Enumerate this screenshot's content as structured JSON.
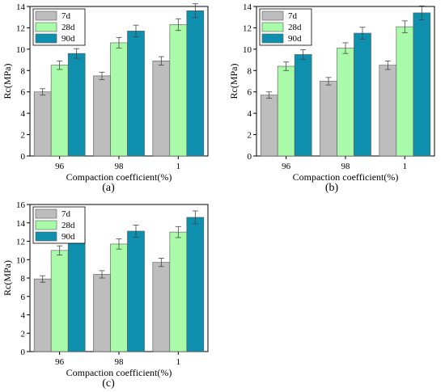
{
  "colors": {
    "7d": "#bdbdbd",
    "28d": "#a9fba9",
    "90d": "#0f8fae",
    "error_bar": "#444444"
  },
  "chart_data": [
    {
      "type": "bar",
      "panel_label": "(a)",
      "xlabel": "Compaction coefficient(%)",
      "ylabel": "Rc(MPa)",
      "categories": [
        "96",
        "98",
        "1"
      ],
      "ylim": [
        0,
        14
      ],
      "yticks": [
        0,
        2,
        4,
        6,
        8,
        10,
        12,
        14
      ],
      "grid": false,
      "legend_position": "top-left",
      "series": [
        {
          "name": "7d",
          "values": [
            6.0,
            7.5,
            8.9
          ],
          "errors": [
            0.3,
            0.35,
            0.4
          ]
        },
        {
          "name": "28d",
          "values": [
            8.5,
            10.6,
            12.3
          ],
          "errors": [
            0.4,
            0.5,
            0.55
          ]
        },
        {
          "name": "90d",
          "values": [
            9.6,
            11.7,
            13.6
          ],
          "errors": [
            0.45,
            0.55,
            0.65
          ]
        }
      ]
    },
    {
      "type": "bar",
      "panel_label": "(b)",
      "xlabel": "Compaction coefficient(%)",
      "ylabel": "Rc(MPa)",
      "categories": [
        "96",
        "98",
        "1"
      ],
      "ylim": [
        0,
        14
      ],
      "yticks": [
        0,
        2,
        4,
        6,
        8,
        10,
        12,
        14
      ],
      "grid": false,
      "legend_position": "top-left",
      "series": [
        {
          "name": "7d",
          "values": [
            5.7,
            7.0,
            8.5
          ],
          "errors": [
            0.3,
            0.35,
            0.4
          ]
        },
        {
          "name": "28d",
          "values": [
            8.4,
            10.1,
            12.1
          ],
          "errors": [
            0.4,
            0.5,
            0.55
          ]
        },
        {
          "name": "90d",
          "values": [
            9.5,
            11.5,
            13.4
          ],
          "errors": [
            0.45,
            0.55,
            0.65
          ]
        }
      ]
    },
    {
      "type": "bar",
      "panel_label": "(c)",
      "xlabel": "Compaction coefficient(%)",
      "ylabel": "Rc(MPa)",
      "categories": [
        "96",
        "98",
        "1"
      ],
      "ylim": [
        0,
        16
      ],
      "yticks": [
        0,
        2,
        4,
        6,
        8,
        10,
        12,
        14,
        16
      ],
      "grid": false,
      "legend_position": "top-left",
      "series": [
        {
          "name": "7d",
          "values": [
            7.9,
            8.4,
            9.7
          ],
          "errors": [
            0.35,
            0.4,
            0.45
          ]
        },
        {
          "name": "28d",
          "values": [
            11.0,
            11.7,
            13.0
          ],
          "errors": [
            0.5,
            0.55,
            0.6
          ]
        },
        {
          "name": "90d",
          "values": [
            12.4,
            13.1,
            14.6
          ],
          "errors": [
            0.6,
            0.65,
            0.7
          ]
        }
      ]
    }
  ]
}
